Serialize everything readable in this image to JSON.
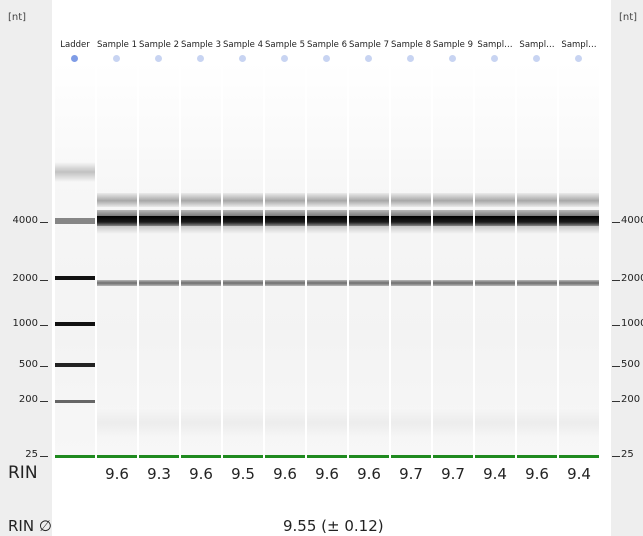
{
  "unit": "[nt]",
  "size_ticks": [
    "4000",
    "2000",
    "1000",
    "500",
    "200",
    "25"
  ],
  "lanes": [
    {
      "label": "Ladder",
      "rin": ""
    },
    {
      "label": "Sample 1",
      "rin": "9.6"
    },
    {
      "label": "Sample 2",
      "rin": "9.3"
    },
    {
      "label": "Sample 3",
      "rin": "9.6"
    },
    {
      "label": "Sample 4",
      "rin": "9.5"
    },
    {
      "label": "Sample 5",
      "rin": "9.6"
    },
    {
      "label": "Sample 6",
      "rin": "9.6"
    },
    {
      "label": "Sample 7",
      "rin": "9.6"
    },
    {
      "label": "Sample 8",
      "rin": "9.7"
    },
    {
      "label": "Sample 9",
      "rin": "9.7"
    },
    {
      "label": "Sampl…",
      "rin": "9.4"
    },
    {
      "label": "Sampl…",
      "rin": "9.6"
    },
    {
      "label": "Sampl…",
      "rin": "9.4"
    }
  ],
  "rin": {
    "row_label": "RIN",
    "average_label": "RIN ∅",
    "average_value": "9.55 (± 0.12)"
  },
  "colors": {
    "marker": "#1f8a1f",
    "well_ladder": "#7f9ce6",
    "well_sample": "#c8d4f2"
  }
}
